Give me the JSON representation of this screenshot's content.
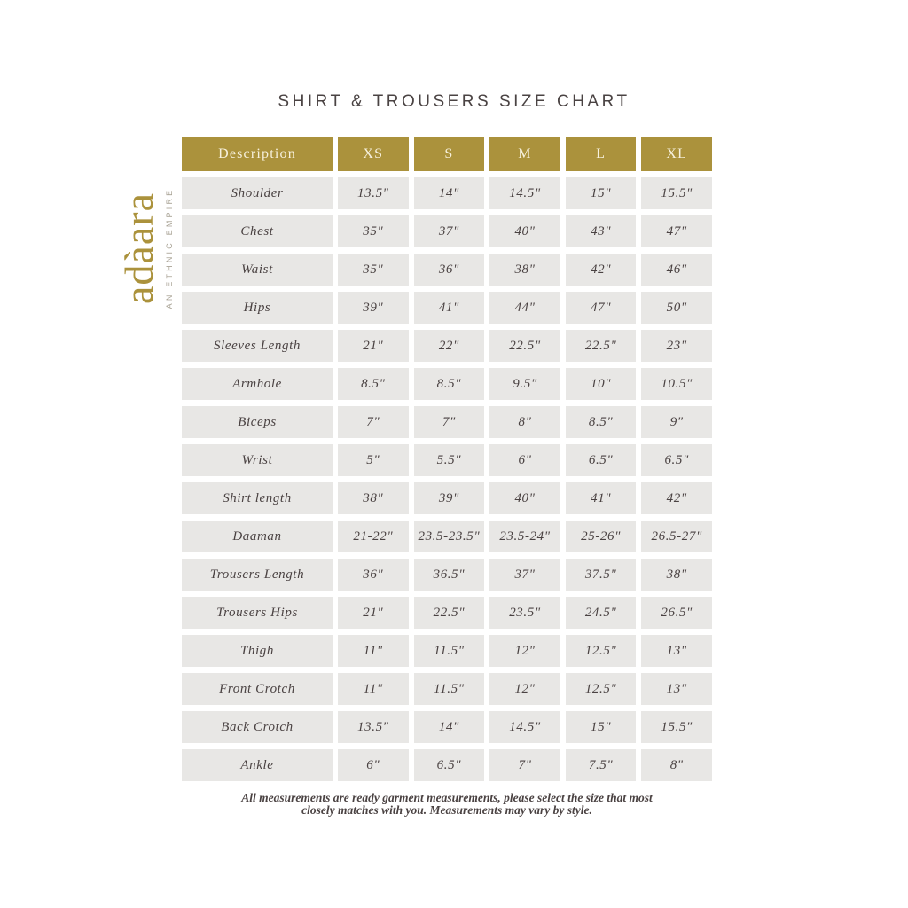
{
  "page": {
    "title": "SHIRT & TROUSERS SIZE CHART"
  },
  "logo": {
    "brand": "adàara",
    "tagline": "AN ETHNIC EMPIRE"
  },
  "colors": {
    "gold": "#ab923c",
    "header_text": "#f7f1dd",
    "cell_bg": "#e8e7e5",
    "cell_text": "#4a4242",
    "title_text": "#4a4343",
    "tagline_text": "#a8a294"
  },
  "chart_data": {
    "type": "table",
    "title": "SHIRT & TROUSERS SIZE CHART",
    "columns": [
      "Description",
      "XS",
      "S",
      "M",
      "L",
      "XL"
    ],
    "rows": [
      {
        "label": "Shoulder",
        "values": [
          "13.5\"",
          "14\"",
          "14.5\"",
          "15\"",
          "15.5\""
        ]
      },
      {
        "label": "Chest",
        "values": [
          "35\"",
          "37\"",
          "40\"",
          "43\"",
          "47\""
        ]
      },
      {
        "label": "Waist",
        "values": [
          "35\"",
          "36\"",
          "38\"",
          "42\"",
          "46\""
        ]
      },
      {
        "label": "Hips",
        "values": [
          "39\"",
          "41\"",
          "44\"",
          "47\"",
          "50\""
        ]
      },
      {
        "label": "Sleeves Length",
        "values": [
          "21\"",
          "22\"",
          "22.5\"",
          "22.5\"",
          "23\""
        ]
      },
      {
        "label": "Armhole",
        "values": [
          "8.5\"",
          "8.5\"",
          "9.5\"",
          "10\"",
          "10.5\""
        ]
      },
      {
        "label": "Biceps",
        "values": [
          "7\"",
          "7\"",
          "8\"",
          "8.5\"",
          "9\""
        ]
      },
      {
        "label": "Wrist",
        "values": [
          "5\"",
          "5.5\"",
          "6\"",
          "6.5\"",
          "6.5\""
        ]
      },
      {
        "label": "Shirt length",
        "values": [
          "38\"",
          "39\"",
          "40\"",
          "41\"",
          "42\""
        ]
      },
      {
        "label": "Daaman",
        "values": [
          "21-22\"",
          "23.5-23.5\"",
          "23.5-24\"",
          "25-26\"",
          "26.5-27\""
        ]
      },
      {
        "label": "Trousers Length",
        "values": [
          "36\"",
          "36.5\"",
          "37\"",
          "37.5\"",
          "38\""
        ]
      },
      {
        "label": "Trousers Hips",
        "values": [
          "21\"",
          "22.5\"",
          "23.5\"",
          "24.5\"",
          "26.5\""
        ]
      },
      {
        "label": "Thigh",
        "values": [
          "11\"",
          "11.5\"",
          "12\"",
          "12.5\"",
          "13\""
        ]
      },
      {
        "label": "Front Crotch",
        "values": [
          "11\"",
          "11.5\"",
          "12\"",
          "12.5\"",
          "13\""
        ]
      },
      {
        "label": "Back Crotch",
        "values": [
          "13.5\"",
          "14\"",
          "14.5\"",
          "15\"",
          "15.5\""
        ]
      },
      {
        "label": "Ankle",
        "values": [
          "6\"",
          "6.5\"",
          "7\"",
          "7.5\"",
          "8\""
        ]
      }
    ]
  },
  "footer": {
    "line1": "All measurements are ready garment measurements, please select the size that most",
    "line2": "closely matches with you. Measurements may vary by style."
  }
}
